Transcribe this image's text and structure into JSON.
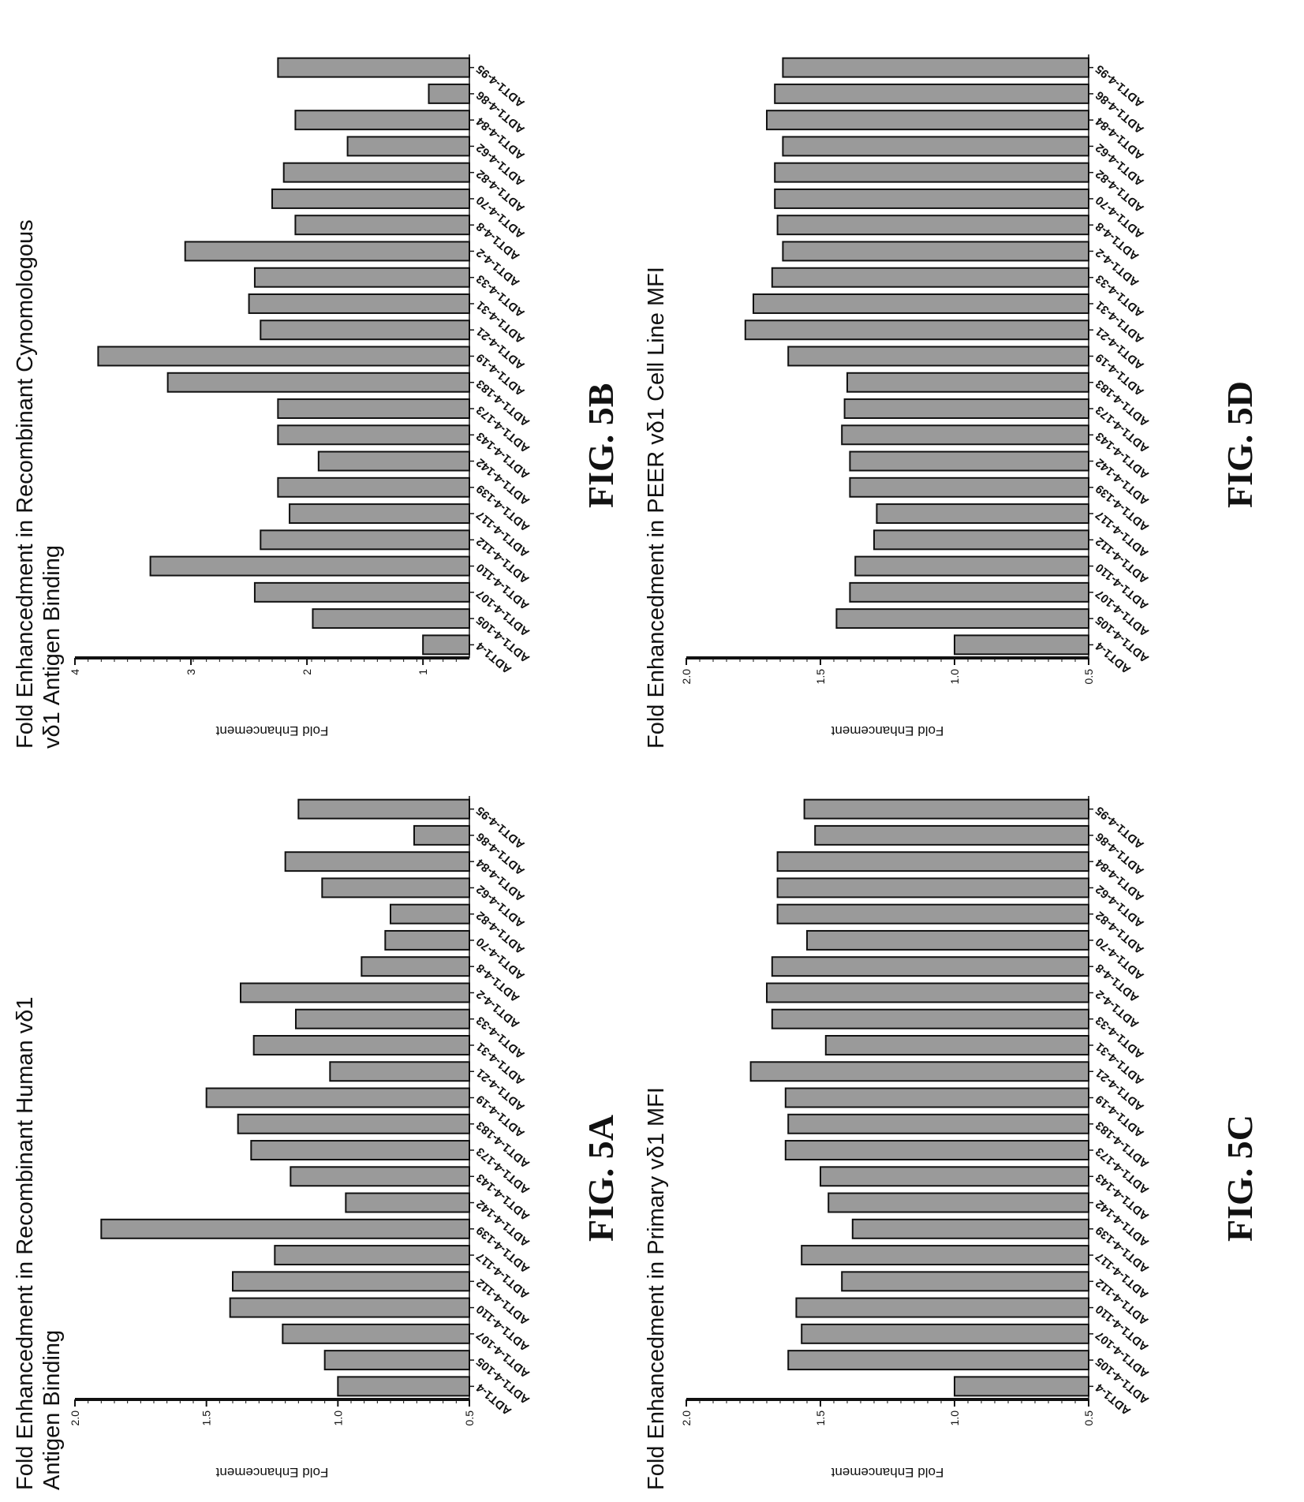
{
  "figures": [
    {
      "id": "5A",
      "fig_label": "FIG. 5A",
      "chart_data": {
        "type": "bar",
        "title": "Fold Enhancedment in Recombinant Human vδ1\nAntigen Binding",
        "ylabel": "Fold Enhancement",
        "ylim": [
          0.5,
          2.0
        ],
        "yticks": [
          "0.5",
          "1.0",
          "1.5",
          "2.0"
        ],
        "categories": [
          "ADT1-4",
          "ADT1-4-105",
          "ADT1-4-107",
          "ADT1-4-110",
          "ADT1-4-112",
          "ADT1-4-117",
          "ADT1-4-139",
          "ADT1-4-142",
          "ADT1-4-143",
          "ADT1-4-173",
          "ADT1-4-183",
          "ADT1-4-19",
          "ADT1-4-21",
          "ADT1-4-31",
          "ADT1-4-33",
          "ADT1-4-2",
          "ADT1-4-8",
          "ADT1-4-70",
          "ADT1-4-82",
          "ADT1-4-62",
          "ADT1-4-84",
          "ADT1-4-86",
          "ADT1-4-95"
        ],
        "values": [
          1.0,
          1.05,
          1.21,
          1.41,
          1.4,
          1.24,
          1.9,
          0.97,
          1.18,
          1.33,
          1.38,
          1.5,
          1.03,
          1.32,
          1.16,
          1.37,
          0.91,
          0.82,
          0.8,
          1.06,
          1.2,
          0.71,
          1.15
        ]
      }
    },
    {
      "id": "5B",
      "fig_label": "FIG. 5B",
      "chart_data": {
        "type": "bar",
        "title": "Fold Enhancedment in Recombinant Cynomologous\nvδ1 Antigen Binding",
        "ylabel": "Fold Enhancement",
        "ylim": [
          0.6,
          4.0
        ],
        "yticks": [
          "1",
          "2",
          "3",
          "4"
        ],
        "categories": [
          "ADT1-4",
          "ADT1-4-105",
          "ADT1-4-107",
          "ADT1-4-110",
          "ADT1-4-112",
          "ADT1-4-117",
          "ADT1-4-139",
          "ADT1-4-142",
          "ADT1-4-143",
          "ADT1-4-173",
          "ADT1-4-183",
          "ADT1-4-19",
          "ADT1-4-21",
          "ADT1-4-31",
          "ADT1-4-33",
          "ADT1-4-2",
          "ADT1-4-8",
          "ADT1-4-70",
          "ADT1-4-82",
          "ADT1-4-62",
          "ADT1-4-84",
          "ADT1-4-86",
          "ADT1-4-95"
        ],
        "values": [
          1.0,
          1.95,
          2.45,
          3.35,
          2.4,
          2.15,
          2.25,
          1.9,
          2.25,
          2.25,
          3.2,
          3.8,
          2.4,
          2.5,
          2.45,
          3.05,
          2.1,
          2.3,
          2.2,
          1.65,
          2.1,
          0.95,
          2.25
        ]
      }
    },
    {
      "id": "5C",
      "fig_label": "FIG. 5C",
      "chart_data": {
        "type": "bar",
        "title": "Fold Enhancedment in Primary vδ1 MFI",
        "ylabel": "Fold Enhancement",
        "ylim": [
          0.5,
          2.0
        ],
        "yticks": [
          "0.5",
          "1.0",
          "1.5",
          "2.0"
        ],
        "categories": [
          "ADT1-4",
          "ADT1-4-105",
          "ADT1-4-107",
          "ADT1-4-110",
          "ADT1-4-112",
          "ADT1-4-117",
          "ADT1-4-139",
          "ADT1-4-142",
          "ADT1-4-143",
          "ADT1-4-173",
          "ADT1-4-183",
          "ADT1-4-19",
          "ADT1-4-21",
          "ADT1-4-31",
          "ADT1-4-33",
          "ADT1-4-2",
          "ADT1-4-8",
          "ADT1-4-70",
          "ADT1-4-82",
          "ADT1-4-62",
          "ADT1-4-84",
          "ADT1-4-86",
          "ADT1-4-95"
        ],
        "values": [
          1.0,
          1.62,
          1.57,
          1.59,
          1.42,
          1.57,
          1.38,
          1.47,
          1.5,
          1.63,
          1.62,
          1.63,
          1.76,
          1.48,
          1.68,
          1.7,
          1.68,
          1.55,
          1.66,
          1.66,
          1.66,
          1.52,
          1.56
        ]
      }
    },
    {
      "id": "5D",
      "fig_label": "FIG. 5D",
      "chart_data": {
        "type": "bar",
        "title": "Fold Enhancedment in PEER vδ1 Cell Line MFI",
        "ylabel": "Fold Enhancement",
        "ylim": [
          0.5,
          2.0
        ],
        "yticks": [
          "0.5",
          "1.0",
          "1.5",
          "2.0"
        ],
        "categories": [
          "ADT1-4",
          "ADT1-4-105",
          "ADT1-4-107",
          "ADT1-4-110",
          "ADT1-4-112",
          "ADT1-4-117",
          "ADT1-4-139",
          "ADT1-4-142",
          "ADT1-4-143",
          "ADT1-4-173",
          "ADT1-4-183",
          "ADT1-4-19",
          "ADT1-4-21",
          "ADT1-4-31",
          "ADT1-4-33",
          "ADT1-4-2",
          "ADT1-4-8",
          "ADT1-4-70",
          "ADT1-4-82",
          "ADT1-4-62",
          "ADT1-4-84",
          "ADT1-4-86",
          "ADT1-4-95"
        ],
        "values": [
          1.0,
          1.44,
          1.39,
          1.37,
          1.3,
          1.29,
          1.39,
          1.39,
          1.42,
          1.41,
          1.4,
          1.62,
          1.78,
          1.75,
          1.68,
          1.64,
          1.66,
          1.67,
          1.67,
          1.64,
          1.7,
          1.67,
          1.64
        ]
      }
    }
  ],
  "colors": {
    "bar_fill": "#9a9a9a",
    "bar_stroke": "#111111",
    "axis": "#111111",
    "text": "#111111"
  }
}
